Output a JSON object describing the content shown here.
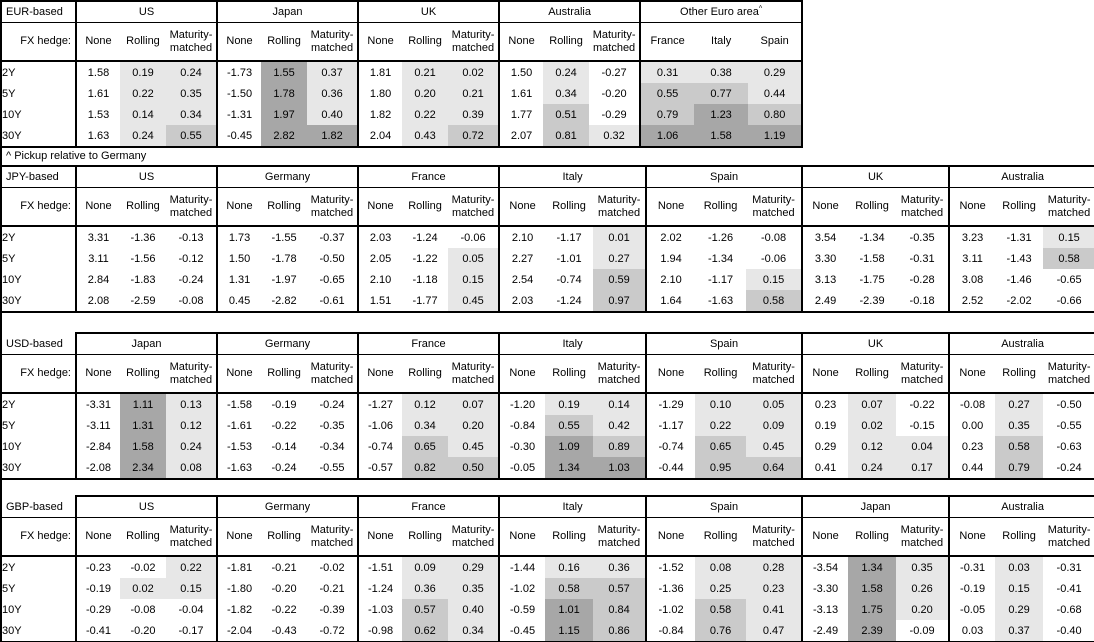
{
  "footnote": "^ Pickup relative to Germany",
  "hedge_row_label": "FX hedge:",
  "hedge_columns": [
    "None",
    "Rolling",
    "Maturity-matched"
  ],
  "tenors": [
    "2Y",
    "5Y",
    "10Y",
    "30Y"
  ],
  "shade_colors": {
    "light": "#e7e7e7",
    "medium": "#cacaca",
    "dark": "#a7a7a7"
  },
  "shade_thresholds": {
    "light_min": 0,
    "medium_min": 0.5,
    "dark_min": 1.0
  },
  "tables": [
    {
      "id": "eur",
      "base": "EUR-based",
      "groups": [
        {
          "country": "US",
          "rows": [
            [
              "1.58",
              "0.19",
              "0.24"
            ],
            [
              "1.61",
              "0.22",
              "0.35"
            ],
            [
              "1.53",
              "0.14",
              "0.34"
            ],
            [
              "1.63",
              "0.24",
              "0.55"
            ]
          ]
        },
        {
          "country": "Japan",
          "rows": [
            [
              "-1.73",
              "1.55",
              "0.37"
            ],
            [
              "-1.50",
              "1.78",
              "0.36"
            ],
            [
              "-1.31",
              "1.97",
              "0.40"
            ],
            [
              "-0.45",
              "2.82",
              "1.82"
            ]
          ]
        },
        {
          "country": "UK",
          "rows": [
            [
              "1.81",
              "0.21",
              "0.02"
            ],
            [
              "1.80",
              "0.20",
              "0.21"
            ],
            [
              "1.82",
              "0.22",
              "0.39"
            ],
            [
              "2.04",
              "0.43",
              "0.72"
            ]
          ]
        },
        {
          "country": "Australia",
          "rows": [
            [
              "1.50",
              "0.24",
              "-0.27"
            ],
            [
              "1.61",
              "0.34",
              "-0.20"
            ],
            [
              "1.77",
              "0.51",
              "-0.29"
            ],
            [
              "2.07",
              "0.81",
              "0.32"
            ]
          ]
        },
        {
          "country": "Other Euro area",
          "superscript": "^",
          "columns": [
            "France",
            "Italy",
            "Spain"
          ],
          "shade_all_columns": true,
          "rows": [
            [
              "0.31",
              "0.38",
              "0.29"
            ],
            [
              "0.55",
              "0.77",
              "0.44"
            ],
            [
              "0.79",
              "1.23",
              "0.80"
            ],
            [
              "1.06",
              "1.58",
              "1.19"
            ]
          ]
        }
      ]
    },
    {
      "id": "jpy",
      "base": "JPY-based",
      "groups": [
        {
          "country": "US",
          "rows": [
            [
              "3.31",
              "-1.36",
              "-0.13"
            ],
            [
              "3.11",
              "-1.56",
              "-0.12"
            ],
            [
              "2.84",
              "-1.83",
              "-0.24"
            ],
            [
              "2.08",
              "-2.59",
              "-0.08"
            ]
          ]
        },
        {
          "country": "Germany",
          "rows": [
            [
              "1.73",
              "-1.55",
              "-0.37"
            ],
            [
              "1.50",
              "-1.78",
              "-0.50"
            ],
            [
              "1.31",
              "-1.97",
              "-0.65"
            ],
            [
              "0.45",
              "-2.82",
              "-0.61"
            ]
          ]
        },
        {
          "country": "France",
          "rows": [
            [
              "2.03",
              "-1.24",
              "-0.06"
            ],
            [
              "2.05",
              "-1.22",
              "0.05"
            ],
            [
              "2.10",
              "-1.18",
              "0.15"
            ],
            [
              "1.51",
              "-1.77",
              "0.45"
            ]
          ]
        },
        {
          "country": "Italy",
          "rows": [
            [
              "2.10",
              "-1.17",
              "0.01"
            ],
            [
              "2.27",
              "-1.01",
              "0.27"
            ],
            [
              "2.54",
              "-0.74",
              "0.59"
            ],
            [
              "2.03",
              "-1.24",
              "0.97"
            ]
          ]
        },
        {
          "country": "Spain",
          "rows": [
            [
              "2.02",
              "-1.26",
              "-0.08"
            ],
            [
              "1.94",
              "-1.34",
              "-0.06"
            ],
            [
              "2.10",
              "-1.17",
              "0.15"
            ],
            [
              "1.64",
              "-1.63",
              "0.58"
            ]
          ]
        },
        {
          "country": "UK",
          "rows": [
            [
              "3.54",
              "-1.34",
              "-0.35"
            ],
            [
              "3.30",
              "-1.58",
              "-0.31"
            ],
            [
              "3.13",
              "-1.75",
              "-0.28"
            ],
            [
              "2.49",
              "-2.39",
              "-0.18"
            ]
          ]
        },
        {
          "country": "Australia",
          "rows": [
            [
              "3.23",
              "-1.31",
              "0.15"
            ],
            [
              "3.11",
              "-1.43",
              "0.58"
            ],
            [
              "3.08",
              "-1.46",
              "-0.65"
            ],
            [
              "2.52",
              "-2.02",
              "-0.66"
            ]
          ]
        }
      ]
    },
    {
      "id": "usd",
      "base": "USD-based",
      "groups": [
        {
          "country": "Japan",
          "rows": [
            [
              "-3.31",
              "1.11",
              "0.13"
            ],
            [
              "-3.11",
              "1.31",
              "0.12"
            ],
            [
              "-2.84",
              "1.58",
              "0.24"
            ],
            [
              "-2.08",
              "2.34",
              "0.08"
            ]
          ]
        },
        {
          "country": "Germany",
          "rows": [
            [
              "-1.58",
              "-0.19",
              "-0.24"
            ],
            [
              "-1.61",
              "-0.22",
              "-0.35"
            ],
            [
              "-1.53",
              "-0.14",
              "-0.34"
            ],
            [
              "-1.63",
              "-0.24",
              "-0.55"
            ]
          ]
        },
        {
          "country": "France",
          "rows": [
            [
              "-1.27",
              "0.12",
              "0.07"
            ],
            [
              "-1.06",
              "0.34",
              "0.20"
            ],
            [
              "-0.74",
              "0.65",
              "0.45"
            ],
            [
              "-0.57",
              "0.82",
              "0.50"
            ]
          ]
        },
        {
          "country": "Italy",
          "rows": [
            [
              "-1.20",
              "0.19",
              "0.14"
            ],
            [
              "-0.84",
              "0.55",
              "0.42"
            ],
            [
              "-0.30",
              "1.09",
              "0.89"
            ],
            [
              "-0.05",
              "1.34",
              "1.03"
            ]
          ]
        },
        {
          "country": "Spain",
          "rows": [
            [
              "-1.29",
              "0.10",
              "0.05"
            ],
            [
              "-1.17",
              "0.22",
              "0.09"
            ],
            [
              "-0.74",
              "0.65",
              "0.45"
            ],
            [
              "-0.44",
              "0.95",
              "0.64"
            ]
          ]
        },
        {
          "country": "UK",
          "rows": [
            [
              "0.23",
              "0.07",
              "-0.22"
            ],
            [
              "0.19",
              "0.02",
              "-0.15"
            ],
            [
              "0.29",
              "0.12",
              "0.04"
            ],
            [
              "0.41",
              "0.24",
              "0.17"
            ]
          ]
        },
        {
          "country": "Australia",
          "rows": [
            [
              "-0.08",
              "0.27",
              "-0.50"
            ],
            [
              "0.00",
              "0.35",
              "-0.55"
            ],
            [
              "0.23",
              "0.58",
              "-0.63"
            ],
            [
              "0.44",
              "0.79",
              "-0.24"
            ]
          ]
        }
      ]
    },
    {
      "id": "gbp",
      "base": "GBP-based",
      "groups": [
        {
          "country": "US",
          "rows": [
            [
              "-0.23",
              "-0.02",
              "0.22"
            ],
            [
              "-0.19",
              "0.02",
              "0.15"
            ],
            [
              "-0.29",
              "-0.08",
              "-0.04"
            ],
            [
              "-0.41",
              "-0.20",
              "-0.17"
            ]
          ]
        },
        {
          "country": "Germany",
          "rows": [
            [
              "-1.81",
              "-0.21",
              "-0.02"
            ],
            [
              "-1.80",
              "-0.20",
              "-0.21"
            ],
            [
              "-1.82",
              "-0.22",
              "-0.39"
            ],
            [
              "-2.04",
              "-0.43",
              "-0.72"
            ]
          ]
        },
        {
          "country": "France",
          "rows": [
            [
              "-1.51",
              "0.09",
              "0.29"
            ],
            [
              "-1.24",
              "0.36",
              "0.35"
            ],
            [
              "-1.03",
              "0.57",
              "0.40"
            ],
            [
              "-0.98",
              "0.62",
              "0.34"
            ]
          ]
        },
        {
          "country": "Italy",
          "rows": [
            [
              "-1.44",
              "0.16",
              "0.36"
            ],
            [
              "-1.02",
              "0.58",
              "0.57"
            ],
            [
              "-0.59",
              "1.01",
              "0.84"
            ],
            [
              "-0.45",
              "1.15",
              "0.86"
            ]
          ]
        },
        {
          "country": "Spain",
          "rows": [
            [
              "-1.52",
              "0.08",
              "0.28"
            ],
            [
              "-1.36",
              "0.25",
              "0.23"
            ],
            [
              "-1.02",
              "0.58",
              "0.41"
            ],
            [
              "-0.84",
              "0.76",
              "0.47"
            ]
          ]
        },
        {
          "country": "Japan",
          "rows": [
            [
              "-3.54",
              "1.34",
              "0.35"
            ],
            [
              "-3.30",
              "1.58",
              "0.26"
            ],
            [
              "-3.13",
              "1.75",
              "0.20"
            ],
            [
              "-2.49",
              "2.39",
              "-0.09"
            ]
          ]
        },
        {
          "country": "Australia",
          "rows": [
            [
              "-0.31",
              "0.03",
              "-0.31"
            ],
            [
              "-0.19",
              "0.15",
              "-0.41"
            ],
            [
              "-0.05",
              "0.29",
              "-0.68"
            ],
            [
              "0.03",
              "0.37",
              "-0.40"
            ]
          ]
        }
      ]
    }
  ]
}
